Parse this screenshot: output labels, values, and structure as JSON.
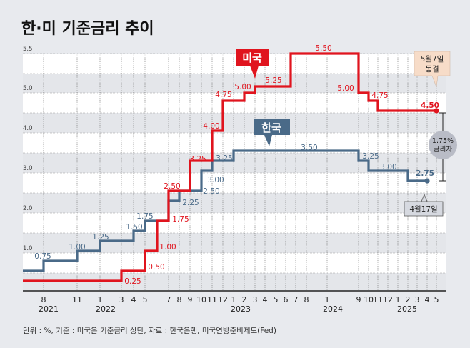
{
  "chart_data": {
    "type": "line",
    "step": true,
    "title": "한·미 기준금리 추이",
    "footer": "단위 : %, 기준 : 미국은 기준금리 상단, 자료 : 한국은행, 미국연방준비제도(Fed)",
    "y_ticks": [
      "5.5",
      "5.0",
      "4.0",
      "3.0",
      "2.0",
      "1.0"
    ],
    "ylim": [
      0,
      5.5
    ],
    "grid": true,
    "x_ticks": [
      {
        "date": "2021-08",
        "month": "8",
        "year": "2021"
      },
      {
        "date": "2021-11",
        "month": "11"
      },
      {
        "date": "2022-01",
        "month": "1",
        "year": "2022"
      },
      {
        "date": "2022-03",
        "month": "3"
      },
      {
        "date": "2022-04",
        "month": "4"
      },
      {
        "date": "2022-05",
        "month": "5"
      },
      {
        "date": "2022-07",
        "month": "7"
      },
      {
        "date": "2022-08",
        "month": "8"
      },
      {
        "date": "2022-09",
        "month": "9"
      },
      {
        "date": "2022-10",
        "month": "10"
      },
      {
        "date": "2022-11",
        "month": "11"
      },
      {
        "date": "2022-12",
        "month": "12"
      },
      {
        "date": "2023-01",
        "month": "1"
      },
      {
        "date": "2023-02",
        "month": "2"
      },
      {
        "date": "2023-03",
        "month": "3",
        "year": "2023"
      },
      {
        "date": "2023-04",
        "month": "4"
      },
      {
        "date": "2023-05",
        "month": "5"
      },
      {
        "date": "2023-06",
        "month": "6"
      },
      {
        "date": "2023-07",
        "month": "7"
      },
      {
        "date": "2023-08",
        "month": "8"
      },
      {
        "date": "2024-01",
        "month": "1",
        "year": "2024"
      },
      {
        "date": "2024-09",
        "month": "9"
      },
      {
        "date": "2024-10",
        "month": "10"
      },
      {
        "date": "2024-11",
        "month": "11"
      },
      {
        "date": "2024-12",
        "month": "12"
      },
      {
        "date": "2025-01",
        "month": "1"
      },
      {
        "date": "2025-02",
        "month": "2"
      },
      {
        "date": "2025-03",
        "month": "3",
        "year": "2025"
      },
      {
        "date": "2025-04",
        "month": "4"
      },
      {
        "date": "2025-05",
        "month": "5"
      }
    ],
    "series": [
      {
        "name": "미국",
        "color": "#e0141e",
        "initial": 0.25,
        "steps": [
          [
            "2022-03",
            0.5
          ],
          [
            "2022-05",
            1.0
          ],
          [
            "2022-06",
            1.75
          ],
          [
            "2022-07",
            2.5
          ],
          [
            "2022-09",
            3.25
          ],
          [
            "2022-11",
            4.0
          ],
          [
            "2022-12",
            4.75
          ],
          [
            "2023-02",
            5.0
          ],
          [
            "2023-03",
            5.25
          ],
          [
            "2023-07",
            5.5
          ],
          [
            "2024-09",
            5.0
          ],
          [
            "2024-10",
            4.75
          ],
          [
            "2024-11",
            4.5
          ]
        ],
        "end": "2025-05",
        "labels": [
          "0.25",
          "0.50",
          "1.00",
          "1.75",
          "2.50",
          "3.25",
          "4.00",
          "4.75",
          "5.00",
          "5.25",
          "5.50",
          "5.00",
          "4.75",
          "4.50"
        ],
        "end_note": "5월7일\n동결",
        "end_note_lines": [
          "5월7일",
          "동결"
        ]
      },
      {
        "name": "한국",
        "color": "#4a6a88",
        "initial": 0.5,
        "steps": [
          [
            "2021-08",
            0.75
          ],
          [
            "2021-11",
            1.0
          ],
          [
            "2022-01",
            1.25
          ],
          [
            "2022-04",
            1.5
          ],
          [
            "2022-05",
            1.75
          ],
          [
            "2022-07",
            2.25
          ],
          [
            "2022-08",
            2.5
          ],
          [
            "2022-10",
            3.0
          ],
          [
            "2022-11",
            3.25
          ],
          [
            "2023-01",
            3.5
          ],
          [
            "2024-09",
            3.25
          ],
          [
            "2024-10",
            3.0
          ],
          [
            "2025-02",
            2.75
          ]
        ],
        "end": "2025-04",
        "labels": [
          "0.75",
          "1.00",
          "1.25",
          "1.50",
          "1.75",
          "2.25",
          "2.50",
          "3.00",
          "3.25",
          "3.50",
          "3.25",
          "3.00",
          "2.75"
        ],
        "end_note": "4월17일"
      }
    ],
    "gap_annotation": [
      "1.75%",
      "금리차"
    ]
  }
}
